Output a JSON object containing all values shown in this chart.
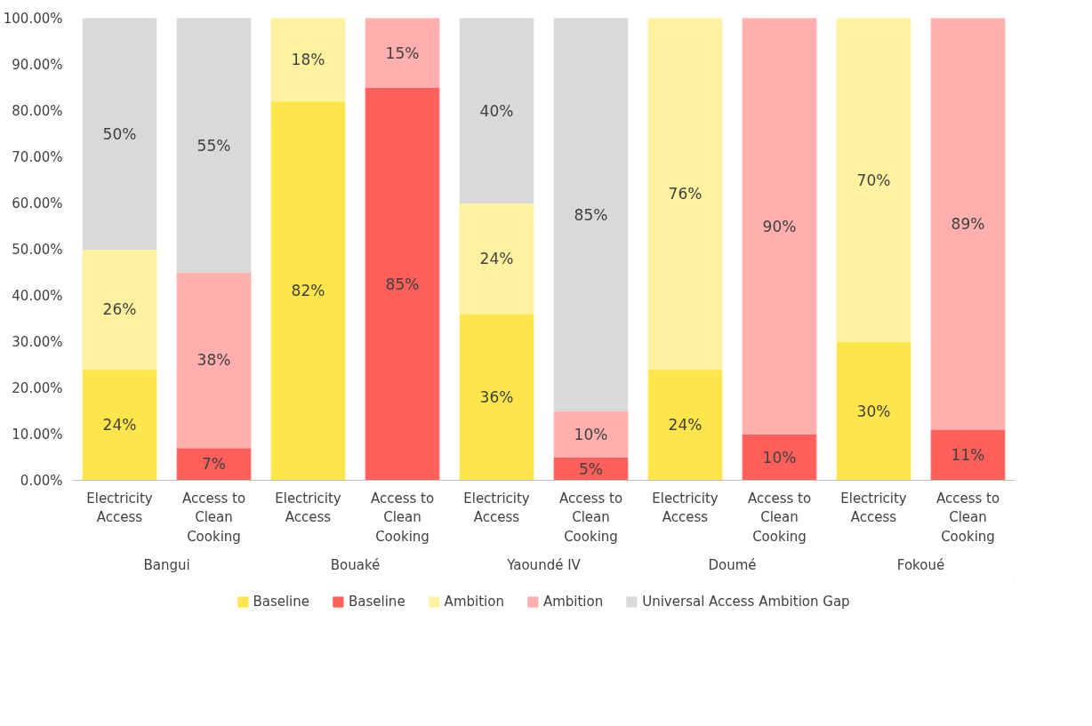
{
  "chart_data": {
    "type": "bar",
    "stacked": true,
    "legend": "bottom",
    "grid": false,
    "categories": [
      "Electricity Access",
      "Access to Clean Cooking",
      "Electricity Access",
      "Access to Clean Cooking",
      "Electricity Access",
      "Access to Clean Cooking",
      "Electricity Access",
      "Access to Clean Cooking",
      "Electricity Access",
      "Access to Clean Cooking"
    ],
    "annotations": [
      "Bangui",
      "Bouaké",
      "Yaoundé IV",
      "Doumé",
      "Fokoué"
    ],
    "ylim": [
      0,
      100
    ],
    "yticks": [
      {
        "value": 0,
        "label": "0.00%"
      },
      {
        "value": 10,
        "label": "10.00%"
      },
      {
        "value": 20,
        "label": "20.00%"
      },
      {
        "value": 30,
        "label": "30.00%"
      },
      {
        "value": 40,
        "label": "40.00%"
      },
      {
        "value": 50,
        "label": "50.00%"
      },
      {
        "value": 60,
        "label": "60.00%"
      },
      {
        "value": 70,
        "label": "70.00%"
      },
      {
        "value": 80,
        "label": "80.00%"
      },
      {
        "value": 90,
        "label": "90.00%"
      },
      {
        "value": 100,
        "label": "100.00%"
      }
    ],
    "series": [
      {
        "name": "Baseline",
        "color": "#fde64b",
        "values": [
          24,
          null,
          82,
          null,
          36,
          null,
          24,
          null,
          30,
          null
        ],
        "value_labels": [
          "24%",
          null,
          "82%",
          null,
          "36%",
          null,
          "24%",
          null,
          "30%",
          null
        ]
      },
      {
        "name": "Baseline",
        "color": "#ff605c",
        "values": [
          null,
          7,
          null,
          85,
          null,
          5,
          null,
          10,
          null,
          11
        ],
        "value_labels": [
          null,
          "7%",
          null,
          "85%",
          null,
          "5%",
          null,
          "10%",
          null,
          "11%"
        ]
      },
      {
        "name": "Ambition",
        "color": "#fef2a0",
        "values": [
          26,
          null,
          18,
          null,
          24,
          null,
          76,
          null,
          70,
          null
        ],
        "value_labels": [
          "26%",
          null,
          "18%",
          null,
          "24%",
          null,
          "76%",
          null,
          "70%",
          null
        ]
      },
      {
        "name": "Ambition",
        "color": "#ffafad",
        "values": [
          null,
          38,
          null,
          15,
          null,
          10,
          null,
          90,
          null,
          89
        ],
        "value_labels": [
          null,
          "38%",
          null,
          "15%",
          null,
          "10%",
          null,
          "90%",
          null,
          "89%"
        ]
      },
      {
        "name": "Universal Access Ambition Gap",
        "color": "#d9d9d9",
        "values": [
          50,
          55,
          null,
          null,
          40,
          85,
          null,
          null,
          null,
          null
        ],
        "value_labels": [
          "50%",
          "55%",
          null,
          null,
          "40%",
          "85%",
          null,
          null,
          null,
          null
        ]
      }
    ]
  }
}
